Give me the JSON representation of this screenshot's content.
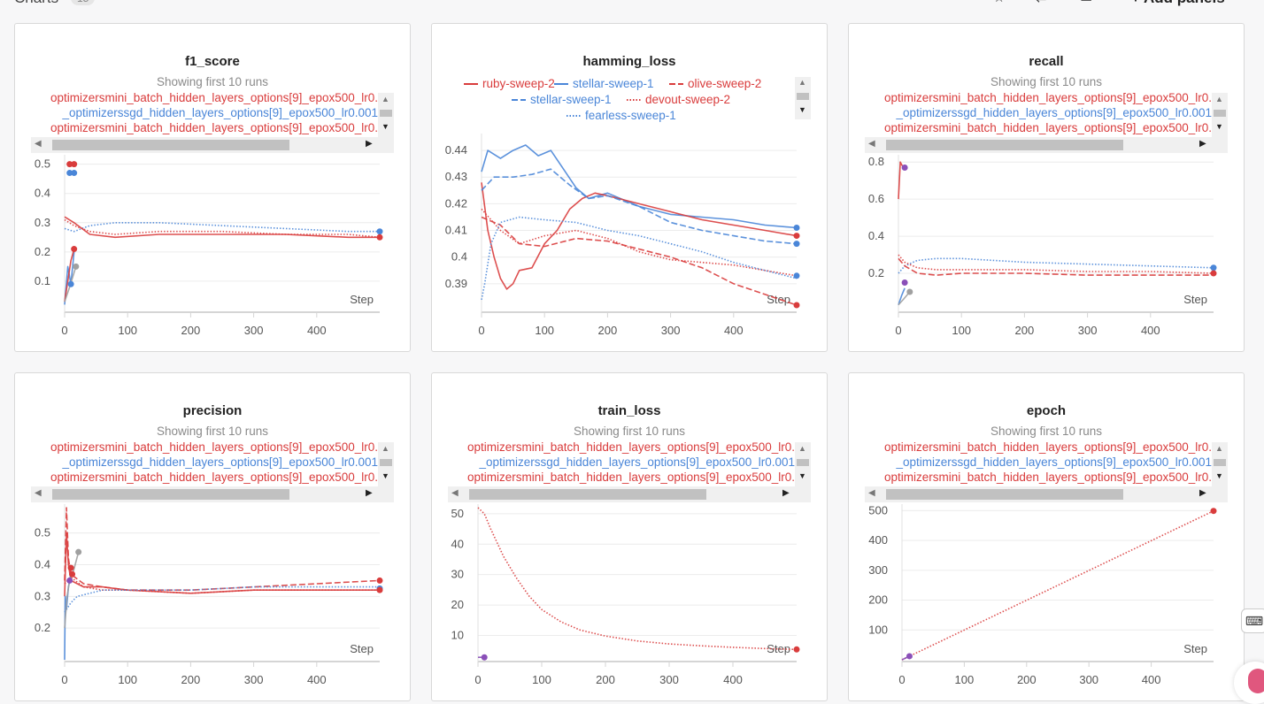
{
  "header": {
    "title": "Charts",
    "count": "15",
    "add_label": "+ Add panels"
  },
  "colors": {
    "red": "#d93c3c",
    "blue": "#4a86d8",
    "gray": "#a0a0a0",
    "purple": "#8a4fb8"
  },
  "run_legend": [
    {
      "text": "optimizersmini_batch_hidden_layers_options[9]_epox500_lr0.",
      "color": "#d93c3c"
    },
    {
      "text": "_optimizerssgd_hidden_layers_options[9]_epox500_lr0.001",
      "color": "#4a86d8"
    },
    {
      "text": "optimizersmini_batch_hidden_layers_options[9]_epox500_lr0.",
      "color": "#d93c3c"
    }
  ],
  "showing_text": "Showing first 10 runs",
  "step_label": "Step",
  "chart_data": [
    {
      "title": "f1_score",
      "type": "line",
      "xlim": [
        0,
        500
      ],
      "ylim": [
        0,
        0.52
      ],
      "xticks": [
        0,
        100,
        200,
        300,
        400
      ],
      "yticks": [
        0.1,
        0.2,
        0.3,
        0.4,
        0.5
      ],
      "series": [
        {
          "color": "#4a86d8",
          "style": "dotted",
          "x": [
            0,
            15,
            40,
            80,
            150,
            250,
            350,
            450,
            500
          ],
          "y": [
            0.28,
            0.27,
            0.29,
            0.3,
            0.3,
            0.29,
            0.28,
            0.27,
            0.27
          ]
        },
        {
          "color": "#d93c3c",
          "style": "solid",
          "x": [
            0,
            15,
            40,
            80,
            150,
            250,
            350,
            450,
            500
          ],
          "y": [
            0.32,
            0.3,
            0.26,
            0.25,
            0.26,
            0.26,
            0.26,
            0.25,
            0.25
          ]
        },
        {
          "color": "#d93c3c",
          "style": "dotted",
          "x": [
            0,
            15,
            40,
            80,
            150,
            250,
            350,
            450,
            500
          ],
          "y": [
            0.31,
            0.29,
            0.27,
            0.26,
            0.27,
            0.27,
            0.26,
            0.26,
            0.25
          ]
        },
        {
          "color": "#4a86d8",
          "style": "solid",
          "x": [
            0,
            5,
            10,
            15
          ],
          "y": [
            0.02,
            0.15,
            0.09,
            0.2
          ]
        },
        {
          "color": "#d93c3c",
          "style": "solid",
          "x": [
            0,
            5,
            10,
            15
          ],
          "y": [
            0.03,
            0.1,
            0.17,
            0.21
          ]
        },
        {
          "color": "#a0a0a0",
          "style": "solid",
          "x": [
            0,
            8,
            18
          ],
          "y": [
            0.03,
            0.08,
            0.15
          ]
        }
      ],
      "points": [
        {
          "x": 15,
          "y": 0.5,
          "color": "#d93c3c"
        },
        {
          "x": 8,
          "y": 0.5,
          "color": "#d93c3c"
        },
        {
          "x": 15,
          "y": 0.47,
          "color": "#4a86d8"
        },
        {
          "x": 8,
          "y": 0.47,
          "color": "#4a86d8"
        },
        {
          "x": 500,
          "y": 0.27,
          "color": "#4a86d8"
        },
        {
          "x": 500,
          "y": 0.25,
          "color": "#d93c3c"
        },
        {
          "x": 15,
          "y": 0.21,
          "color": "#d93c3c"
        },
        {
          "x": 18,
          "y": 0.15,
          "color": "#a0a0a0"
        },
        {
          "x": 10,
          "y": 0.09,
          "color": "#4a86d8"
        }
      ]
    },
    {
      "title": "hamming_loss",
      "type": "line",
      "xlim": [
        0,
        500
      ],
      "ylim": [
        0.38,
        0.445
      ],
      "xticks": [
        0,
        100,
        200,
        300,
        400
      ],
      "yticks": [
        0.39,
        0.4,
        0.41,
        0.42,
        0.43,
        0.44
      ],
      "ytick_labels": [
        "0.39",
        "0.4",
        "0.41",
        "0.42",
        "0.43",
        "0.44"
      ],
      "legend": [
        {
          "name": "ruby-sweep-2",
          "color": "#d93c3c",
          "style": "solid"
        },
        {
          "name": "stellar-sweep-1",
          "color": "#4a86d8",
          "style": "solid"
        },
        {
          "name": "olive-sweep-2",
          "color": "#d93c3c",
          "style": "dashed"
        },
        {
          "name": "stellar-sweep-1",
          "color": "#4a86d8",
          "style": "dashed"
        },
        {
          "name": "devout-sweep-2",
          "color": "#d93c3c",
          "style": "dotted"
        },
        {
          "name": "fearless-sweep-1",
          "color": "#4a86d8",
          "style": "dotted"
        }
      ],
      "series": [
        {
          "color": "#4a86d8",
          "style": "solid",
          "x": [
            0,
            10,
            30,
            50,
            70,
            90,
            110,
            130,
            150,
            170,
            200,
            250,
            300,
            350,
            400,
            450,
            500
          ],
          "y": [
            0.432,
            0.44,
            0.437,
            0.44,
            0.442,
            0.438,
            0.44,
            0.433,
            0.426,
            0.422,
            0.424,
            0.419,
            0.416,
            0.415,
            0.414,
            0.412,
            0.411
          ]
        },
        {
          "color": "#d93c3c",
          "style": "solid",
          "x": [
            0,
            10,
            20,
            30,
            40,
            50,
            60,
            80,
            100,
            120,
            140,
            160,
            180,
            200,
            250,
            300,
            350,
            400,
            450,
            500
          ],
          "y": [
            0.428,
            0.41,
            0.4,
            0.392,
            0.388,
            0.39,
            0.395,
            0.396,
            0.405,
            0.41,
            0.418,
            0.422,
            0.424,
            0.423,
            0.42,
            0.417,
            0.414,
            0.412,
            0.41,
            0.408
          ]
        },
        {
          "color": "#4a86d8",
          "style": "dashed",
          "x": [
            0,
            20,
            50,
            80,
            110,
            140,
            170,
            200,
            250,
            300,
            350,
            400,
            450,
            500
          ],
          "y": [
            0.425,
            0.43,
            0.43,
            0.431,
            0.433,
            0.427,
            0.422,
            0.423,
            0.419,
            0.413,
            0.41,
            0.408,
            0.406,
            0.405
          ]
        },
        {
          "color": "#d93c3c",
          "style": "dashed",
          "x": [
            0,
            30,
            60,
            100,
            150,
            200,
            250,
            300,
            350,
            400,
            450,
            500
          ],
          "y": [
            0.415,
            0.412,
            0.405,
            0.404,
            0.407,
            0.406,
            0.403,
            0.4,
            0.396,
            0.39,
            0.386,
            0.382
          ]
        },
        {
          "color": "#d93c3c",
          "style": "dotted",
          "x": [
            0,
            30,
            60,
            100,
            150,
            200,
            250,
            300,
            350,
            400,
            450,
            500
          ],
          "y": [
            0.418,
            0.41,
            0.405,
            0.408,
            0.41,
            0.407,
            0.402,
            0.399,
            0.398,
            0.397,
            0.395,
            0.393
          ]
        },
        {
          "color": "#4a86d8",
          "style": "dotted",
          "x": [
            0,
            5,
            15,
            30,
            60,
            100,
            150,
            200,
            250,
            300,
            350,
            400,
            450,
            500
          ],
          "y": [
            0.384,
            0.39,
            0.405,
            0.413,
            0.415,
            0.414,
            0.413,
            0.41,
            0.408,
            0.405,
            0.402,
            0.398,
            0.395,
            0.392
          ]
        }
      ],
      "points": [
        {
          "x": 500,
          "y": 0.411,
          "color": "#4a86d8"
        },
        {
          "x": 500,
          "y": 0.408,
          "color": "#d93c3c"
        },
        {
          "x": 500,
          "y": 0.405,
          "color": "#4a86d8"
        },
        {
          "x": 500,
          "y": 0.393,
          "color": "#4a86d8"
        },
        {
          "x": 500,
          "y": 0.382,
          "color": "#d93c3c"
        }
      ]
    },
    {
      "title": "recall",
      "type": "line",
      "xlim": [
        0,
        500
      ],
      "ylim": [
        0,
        0.82
      ],
      "xticks": [
        0,
        100,
        200,
        300,
        400
      ],
      "yticks": [
        0.2,
        0.4,
        0.6,
        0.8
      ],
      "series": [
        {
          "color": "#4a86d8",
          "style": "dotted",
          "x": [
            0,
            10,
            30,
            60,
            100,
            200,
            300,
            400,
            500
          ],
          "y": [
            0.2,
            0.24,
            0.27,
            0.28,
            0.28,
            0.26,
            0.25,
            0.24,
            0.23
          ]
        },
        {
          "color": "#d93c3c",
          "style": "dotted",
          "x": [
            0,
            10,
            30,
            60,
            100,
            200,
            300,
            400,
            500
          ],
          "y": [
            0.3,
            0.26,
            0.23,
            0.22,
            0.22,
            0.22,
            0.21,
            0.21,
            0.2
          ]
        },
        {
          "color": "#d93c3c",
          "style": "dashed",
          "x": [
            0,
            10,
            30,
            60,
            100,
            200,
            300,
            400,
            500
          ],
          "y": [
            0.28,
            0.24,
            0.2,
            0.19,
            0.2,
            0.2,
            0.19,
            0.19,
            0.19
          ]
        },
        {
          "color": "#d93c3c",
          "style": "solid",
          "x": [
            0,
            3,
            6,
            10
          ],
          "y": [
            0.6,
            0.8,
            0.78,
            0.77
          ]
        },
        {
          "color": "#4a86d8",
          "style": "solid",
          "x": [
            0,
            5,
            10
          ],
          "y": [
            0.03,
            0.08,
            0.12
          ]
        },
        {
          "color": "#a0a0a0",
          "style": "solid",
          "x": [
            0,
            8,
            18
          ],
          "y": [
            0.03,
            0.06,
            0.1
          ]
        }
      ],
      "points": [
        {
          "x": 10,
          "y": 0.77,
          "color": "#8a4fb8"
        },
        {
          "x": 500,
          "y": 0.23,
          "color": "#4a86d8"
        },
        {
          "x": 500,
          "y": 0.2,
          "color": "#d93c3c"
        },
        {
          "x": 10,
          "y": 0.15,
          "color": "#8a4fb8"
        },
        {
          "x": 18,
          "y": 0.1,
          "color": "#a0a0a0"
        }
      ]
    },
    {
      "title": "precision",
      "type": "line",
      "xlim": [
        0,
        500
      ],
      "ylim": [
        0.1,
        0.58
      ],
      "xticks": [
        0,
        100,
        200,
        300,
        400
      ],
      "yticks": [
        0.2,
        0.3,
        0.4,
        0.5
      ],
      "series": [
        {
          "color": "#d93c3c",
          "style": "dashed",
          "x": [
            0,
            3,
            6,
            10,
            30,
            60,
            100,
            200,
            300,
            400,
            500
          ],
          "y": [
            0.35,
            0.58,
            0.42,
            0.37,
            0.34,
            0.33,
            0.32,
            0.32,
            0.33,
            0.34,
            0.35
          ]
        },
        {
          "color": "#d93c3c",
          "style": "solid",
          "x": [
            0,
            3,
            6,
            10,
            30,
            60,
            100,
            200,
            300,
            400,
            500
          ],
          "y": [
            0.3,
            0.5,
            0.4,
            0.35,
            0.33,
            0.33,
            0.32,
            0.31,
            0.32,
            0.32,
            0.32
          ]
        },
        {
          "color": "#d93c3c",
          "style": "dotted",
          "x": [
            0,
            10,
            30,
            60,
            100,
            200,
            300,
            400,
            500
          ],
          "y": [
            0.34,
            0.36,
            0.33,
            0.32,
            0.32,
            0.31,
            0.32,
            0.32,
            0.32
          ]
        },
        {
          "color": "#4a86d8",
          "style": "dotted",
          "x": [
            0,
            10,
            20,
            40,
            60,
            100,
            200,
            300,
            400,
            500
          ],
          "y": [
            0.25,
            0.28,
            0.3,
            0.31,
            0.32,
            0.32,
            0.32,
            0.33,
            0.33,
            0.33
          ]
        },
        {
          "color": "#4a86d8",
          "style": "solid",
          "x": [
            0,
            1,
            3,
            6,
            10
          ],
          "y": [
            0.1,
            0.3,
            0.26,
            0.33,
            0.37
          ]
        },
        {
          "color": "#a0a0a0",
          "style": "solid",
          "x": [
            0,
            4,
            8,
            14,
            22
          ],
          "y": [
            0.2,
            0.3,
            0.35,
            0.38,
            0.44
          ]
        }
      ],
      "points": [
        {
          "x": 10,
          "y": 0.39,
          "color": "#d93c3c"
        },
        {
          "x": 12,
          "y": 0.37,
          "color": "#d93c3c"
        },
        {
          "x": 22,
          "y": 0.44,
          "color": "#a0a0a0"
        },
        {
          "x": 8,
          "y": 0.35,
          "color": "#8a4fb8"
        },
        {
          "x": 500,
          "y": 0.35,
          "color": "#d93c3c"
        },
        {
          "x": 500,
          "y": 0.325,
          "color": "#4a86d8"
        },
        {
          "x": 500,
          "y": 0.32,
          "color": "#d93c3c"
        }
      ]
    },
    {
      "title": "train_loss",
      "type": "line",
      "xlim": [
        0,
        500
      ],
      "ylim": [
        2,
        52
      ],
      "xticks": [
        0,
        100,
        200,
        300,
        400
      ],
      "yticks": [
        10,
        20,
        30,
        40,
        50
      ],
      "series": [
        {
          "color": "#d93c3c",
          "style": "dotted",
          "x": [
            0,
            10,
            20,
            40,
            60,
            80,
            100,
            130,
            160,
            200,
            250,
            300,
            350,
            400,
            450,
            500
          ],
          "y": [
            52,
            50,
            45,
            36,
            29,
            23,
            18.5,
            14.5,
            11.8,
            9.8,
            8.2,
            7.2,
            6.6,
            6.1,
            5.7,
            5.4
          ]
        },
        {
          "color": "#8a4fb8",
          "style": "solid",
          "x": [
            0,
            10
          ],
          "y": [
            2.8,
            2.8
          ]
        }
      ],
      "points": [
        {
          "x": 500,
          "y": 5.4,
          "color": "#d93c3c"
        },
        {
          "x": 10,
          "y": 2.8,
          "color": "#8a4fb8"
        }
      ]
    },
    {
      "title": "epoch",
      "type": "line",
      "xlim": [
        0,
        500
      ],
      "ylim": [
        0,
        510
      ],
      "xticks": [
        0,
        100,
        200,
        300,
        400
      ],
      "yticks": [
        100,
        200,
        300,
        400,
        500
      ],
      "series": [
        {
          "color": "#d93c3c",
          "style": "dotted",
          "x": [
            0,
            500
          ],
          "y": [
            0,
            499
          ]
        },
        {
          "color": "#8a4fb8",
          "style": "solid",
          "x": [
            0,
            12
          ],
          "y": [
            0,
            12
          ]
        }
      ],
      "points": [
        {
          "x": 500,
          "y": 499,
          "color": "#d93c3c"
        },
        {
          "x": 12,
          "y": 12,
          "color": "#8a4fb8"
        }
      ]
    }
  ]
}
